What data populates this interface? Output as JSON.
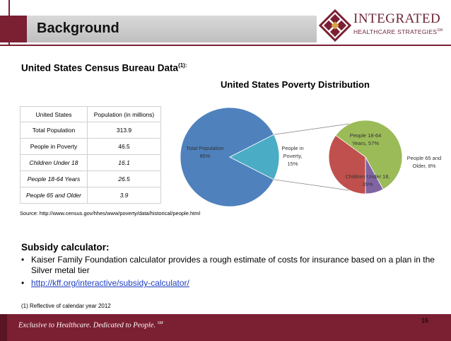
{
  "header": {
    "title": "Background"
  },
  "logo": {
    "name": "INTEGRATED",
    "subtitle": "HEALTHCARE STRATEGIES",
    "mark": "SM"
  },
  "census": {
    "heading": "United States Census Bureau Data",
    "heading_sup": "(1):",
    "columns": [
      "United States",
      "Population (in millions)"
    ],
    "rows": [
      {
        "label": "Total Population",
        "value": "313.9"
      },
      {
        "label": "People in Poverty",
        "value": "46.5"
      },
      {
        "label": "Children Under 18",
        "value": "16.1"
      },
      {
        "label": "People 18-64 Years",
        "value": "26.5"
      },
      {
        "label": "People 65 and Older",
        "value": "3.9"
      }
    ],
    "source": "Source: http://www.census.gov/hhes/www/poverty/data/historical/people.html"
  },
  "chart_data": {
    "type": "pie",
    "title": "United States Poverty Distribution",
    "primary": [
      {
        "label": "Total Population,",
        "pct": "85%",
        "value": 85
      },
      {
        "label": "People in Poverty,",
        "pct": "15%",
        "value": 15
      }
    ],
    "secondary": [
      {
        "label": "People 18-64 Years,",
        "pct": "57%",
        "value": 57
      },
      {
        "label": "People 65 and Older,",
        "pct": "8%",
        "value": 8
      },
      {
        "label": "Children Under 18,",
        "pct": "35%",
        "value": 35
      }
    ],
    "colors": {
      "primary": "#4f81bd",
      "poverty": "#4bacc6",
      "adults": "#9bbb59",
      "seniors": "#8064a2",
      "children": "#c0504d"
    }
  },
  "subsidy": {
    "heading": "Subsidy calculator:",
    "bullets": [
      "Kaiser Family Foundation calculator provides a rough estimate of costs for insurance based on a plan in the Silver metal tier",
      "http://kff.org/interactive/subsidy-calculator/"
    ]
  },
  "footnote": "(1) Reflective of calendar year 2012",
  "footer": {
    "tagline": "Exclusive to Healthcare.  Dedicated to People.",
    "tagline_mark": "SM",
    "page": "16"
  }
}
